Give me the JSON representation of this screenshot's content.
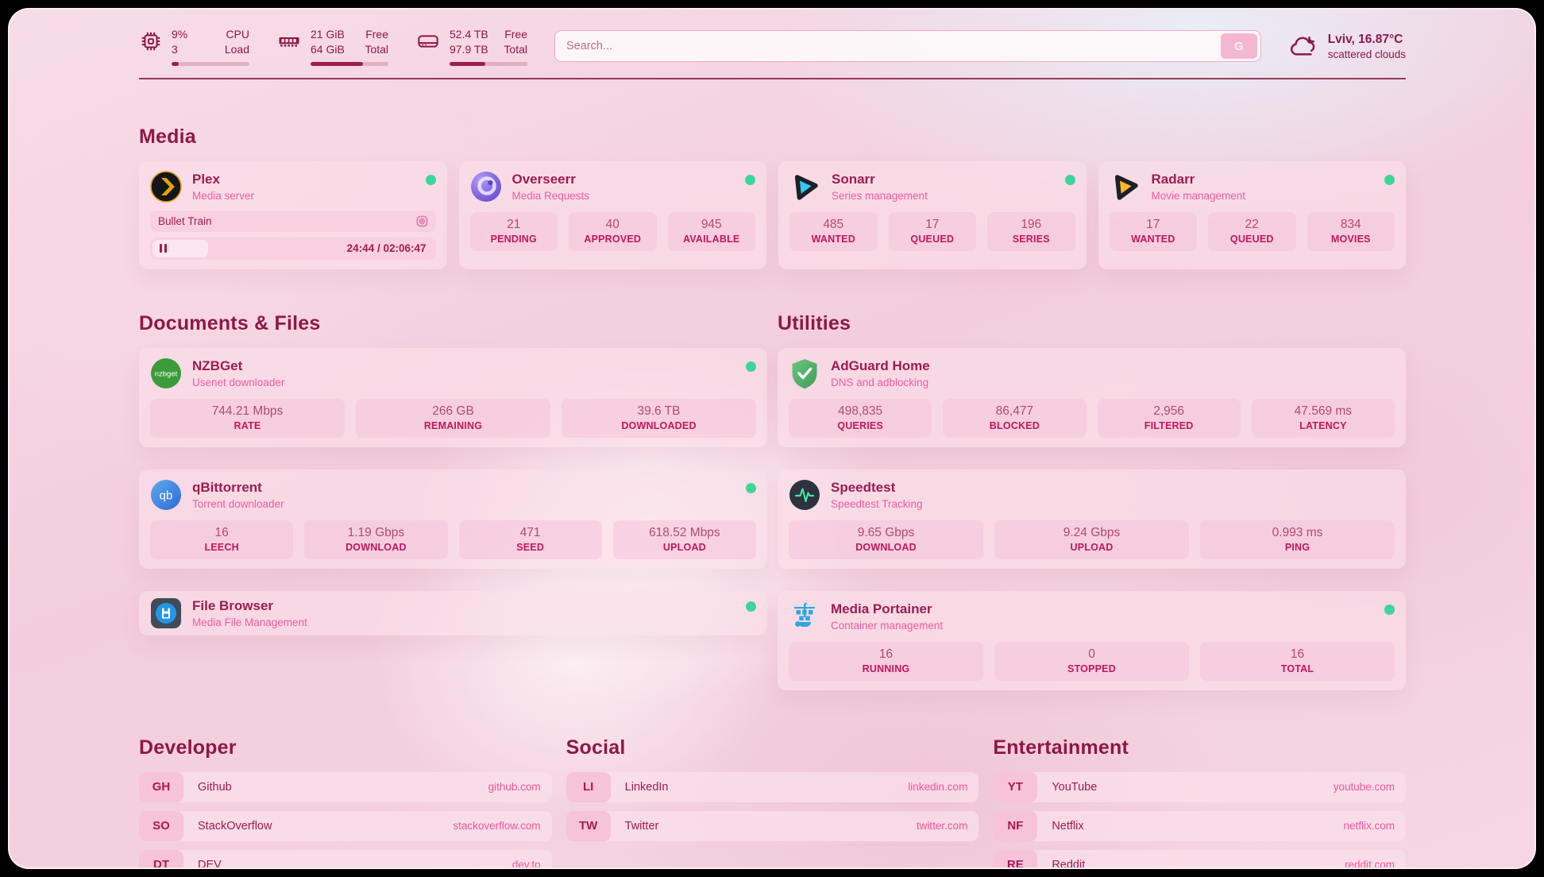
{
  "colors": {
    "accent": "#8e1748",
    "subtitle_pink": "#ee5da1",
    "label_crimson": "#c0175c",
    "url_pink": "#f0559d",
    "status_online": "#3ed598",
    "progress_fill": "#a01c4e"
  },
  "icons": {
    "cpu": "chip-outline",
    "memory": "ram-stick",
    "disk": "drive",
    "search_engine": "letter-G-button",
    "weather": "cloud-outline",
    "plex": "black-circle-yellow-chevron",
    "overseerr": "purple-swirl-circle",
    "sonarr": "play-triangle-blue",
    "radarr": "play-triangle-yellow",
    "nzbget": "green-circle-wordmark",
    "qbittorrent": "blue-circle-qb",
    "filebrowser": "dark-square-blue-circle-file",
    "adguard": "green-shield-check",
    "speedtest": "dark-circle-pulse",
    "portainer": "blue-crane-containers",
    "pause": "two-bars",
    "now-playing-media": "rounded-square-lens"
  },
  "header": {
    "cpu": {
      "value_top": "9%",
      "value_bottom": "3",
      "label_top": "CPU",
      "label_bottom": "Load",
      "progress_pct": 9
    },
    "memory": {
      "value_top": "21 GiB",
      "value_bottom": "64 GiB",
      "label_top": "Free",
      "label_bottom": "Total",
      "progress_pct": 67
    },
    "disk": {
      "value_top": "52.4 TB",
      "value_bottom": "97.9 TB",
      "label_top": "Free",
      "label_bottom": "Total",
      "progress_pct": 46
    },
    "search": {
      "placeholder": "Search...",
      "engine_label": "G"
    },
    "weather": {
      "location_temp": "Lviv, 16.87°C",
      "condition": "scattered clouds"
    }
  },
  "media": {
    "title": "Media",
    "apps": [
      {
        "name": "Plex",
        "subtitle": "Media server",
        "status": "online",
        "now_playing": {
          "title": "Bullet Train",
          "time_display": "24:44 / 02:06:47",
          "progress_pct": 19.5
        }
      },
      {
        "name": "Overseerr",
        "subtitle": "Media Requests",
        "status": "online",
        "stats": [
          {
            "value": "21",
            "label": "PENDING"
          },
          {
            "value": "40",
            "label": "APPROVED"
          },
          {
            "value": "945",
            "label": "AVAILABLE"
          }
        ]
      },
      {
        "name": "Sonarr",
        "subtitle": "Series management",
        "status": "online",
        "stats": [
          {
            "value": "485",
            "label": "WANTED"
          },
          {
            "value": "17",
            "label": "QUEUED"
          },
          {
            "value": "196",
            "label": "SERIES"
          }
        ]
      },
      {
        "name": "Radarr",
        "subtitle": "Movie management",
        "status": "online",
        "stats": [
          {
            "value": "17",
            "label": "WANTED"
          },
          {
            "value": "22",
            "label": "QUEUED"
          },
          {
            "value": "834",
            "label": "MOVIES"
          }
        ]
      }
    ]
  },
  "documents": {
    "title": "Documents & Files",
    "apps": [
      {
        "name": "NZBGet",
        "subtitle": "Usenet downloader",
        "status": "online",
        "stats": [
          {
            "value": "744.21 Mbps",
            "label": "RATE"
          },
          {
            "value": "266 GB",
            "label": "REMAINING"
          },
          {
            "value": "39.6 TB",
            "label": "DOWNLOADED"
          }
        ]
      },
      {
        "name": "qBittorrent",
        "subtitle": "Torrent downloader",
        "status": "online",
        "stats": [
          {
            "value": "16",
            "label": "LEECH"
          },
          {
            "value": "1.19 Gbps",
            "label": "DOWNLOAD"
          },
          {
            "value": "471",
            "label": "SEED"
          },
          {
            "value": "618.52 Mbps",
            "label": "UPLOAD"
          }
        ]
      },
      {
        "name": "File Browser",
        "subtitle": "Media File Management",
        "status": "online",
        "stats": []
      }
    ]
  },
  "utilities": {
    "title": "Utilities",
    "apps": [
      {
        "name": "AdGuard Home",
        "subtitle": "DNS and adblocking",
        "status": "",
        "stats": [
          {
            "value": "498,835",
            "label": "QUERIES"
          },
          {
            "value": "86,477",
            "label": "BLOCKED"
          },
          {
            "value": "2,956",
            "label": "FILTERED"
          },
          {
            "value": "47.569 ms",
            "label": "LATENCY"
          }
        ]
      },
      {
        "name": "Speedtest",
        "subtitle": "Speedtest Tracking",
        "status": "",
        "stats": [
          {
            "value": "9.65 Gbps",
            "label": "DOWNLOAD"
          },
          {
            "value": "9.24 Gbps",
            "label": "UPLOAD"
          },
          {
            "value": "0.993 ms",
            "label": "PING"
          }
        ]
      },
      {
        "name": "Media Portainer",
        "subtitle": "Container management",
        "status": "online",
        "stats": [
          {
            "value": "16",
            "label": "RUNNING"
          },
          {
            "value": "0",
            "label": "STOPPED"
          },
          {
            "value": "16",
            "label": "TOTAL"
          }
        ]
      }
    ]
  },
  "bookmarks": [
    {
      "title": "Developer",
      "items": [
        {
          "abbr": "GH",
          "name": "Github",
          "url": "github.com"
        },
        {
          "abbr": "SO",
          "name": "StackOverflow",
          "url": "stackoverflow.com"
        },
        {
          "abbr": "DT",
          "name": "DEV",
          "url": "dev.to"
        }
      ]
    },
    {
      "title": "Social",
      "items": [
        {
          "abbr": "LI",
          "name": "LinkedIn",
          "url": "linkedin.com"
        },
        {
          "abbr": "TW",
          "name": "Twitter",
          "url": "twitter.com"
        }
      ]
    },
    {
      "title": "Entertainment",
      "items": [
        {
          "abbr": "YT",
          "name": "YouTube",
          "url": "youtube.com"
        },
        {
          "abbr": "NF",
          "name": "Netflix",
          "url": "netflix.com"
        },
        {
          "abbr": "RE",
          "name": "Reddit",
          "url": "reddit.com"
        }
      ]
    }
  ]
}
